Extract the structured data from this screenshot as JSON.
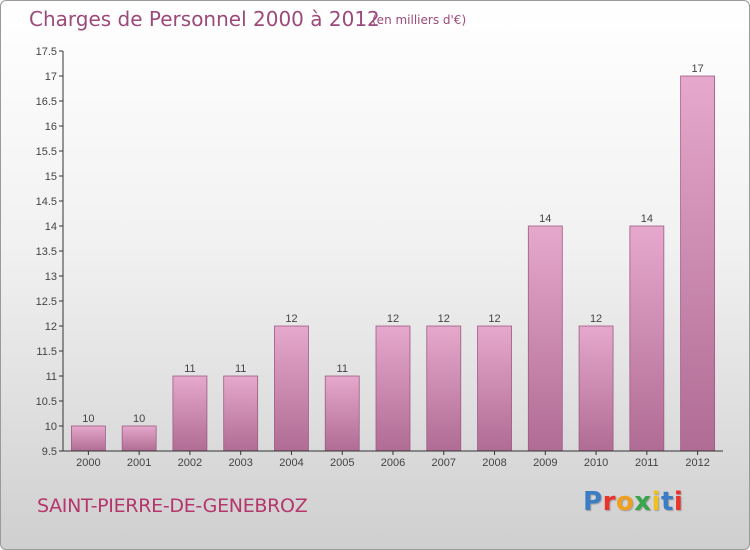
{
  "header": {
    "title": "Charges de Personnel 2000 à 2012",
    "subtitle": "(en milliers d'€)"
  },
  "footer": {
    "commune": "SAINT-PIERRE-DE-GENEBROZ",
    "logo": {
      "text": "Proxiti",
      "letter_colors": [
        "#3a7dc4",
        "#e8342a",
        "#f0a020",
        "#3aa54a",
        "#f0c020",
        "#3a7dc4",
        "#e8342a"
      ]
    }
  },
  "chart_data": {
    "type": "bar",
    "title": "Charges de Personnel 2000 à 2012",
    "subtitle": "(en milliers d'€)",
    "xlabel": "",
    "ylabel": "",
    "categories": [
      "2000",
      "2001",
      "2002",
      "2003",
      "2004",
      "2005",
      "2006",
      "2007",
      "2008",
      "2009",
      "2010",
      "2011",
      "2012"
    ],
    "values": [
      10,
      10,
      11,
      11,
      12,
      11,
      12,
      12,
      12,
      14,
      12,
      14,
      17
    ],
    "value_labels": [
      "10",
      "10",
      "11",
      "11",
      "12",
      "11",
      "12",
      "12",
      "12",
      "14",
      "12",
      "14",
      "17"
    ],
    "ylim": [
      9.5,
      17.5
    ],
    "yticks": [
      9.5,
      10,
      10.5,
      11,
      11.5,
      12,
      12.5,
      13,
      13.5,
      14,
      14.5,
      15,
      15.5,
      16,
      16.5,
      17,
      17.5
    ],
    "ytick_labels": [
      "9.5",
      "10",
      "10.5",
      "11",
      "11.5",
      "12",
      "12.5",
      "13",
      "13.5",
      "14",
      "14.5",
      "15",
      "15.5",
      "16",
      "16.5",
      "17",
      "17.5"
    ],
    "grid": false,
    "legend": "none",
    "colors": {
      "bar_light": "#e6a8cc",
      "bar_dark": "#b06c94",
      "bar_edge": "#9c5b83",
      "axis": "#333333"
    }
  }
}
